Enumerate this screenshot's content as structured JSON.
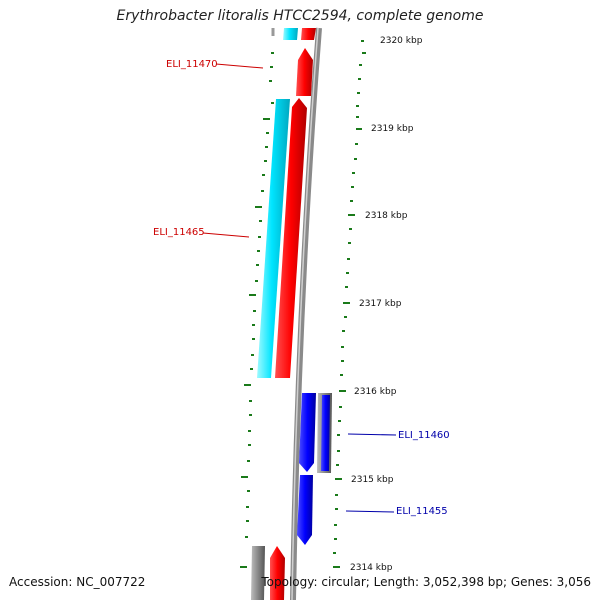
{
  "title": "Erythrobacter litoralis HTCC2594, complete genome",
  "accession": "Accession: NC_007722",
  "topology": "Topology: circular; Length: 3,052,398 bp; Genes: 3,056",
  "ticks": [
    "2320 kbp",
    "2319 kbp",
    "2318 kbp",
    "2317 kbp",
    "2316 kbp",
    "2315 kbp",
    "2314 kbp"
  ],
  "genes": [
    {
      "id": "ELI_11470",
      "color": "#cc0000"
    },
    {
      "id": "ELI_11465",
      "color": "#cc0000"
    },
    {
      "id": "ELI_11460",
      "color": "#0000aa"
    },
    {
      "id": "ELI_11455",
      "color": "#0000aa"
    }
  ],
  "colors": {
    "forward_cds": "#ff0000",
    "reverse_cds": "#0000ff",
    "forward_feature": "#00e5ff",
    "backbone": "#8a8a8a",
    "tick": "#1a7a1a",
    "gray_feature": "#707070"
  }
}
